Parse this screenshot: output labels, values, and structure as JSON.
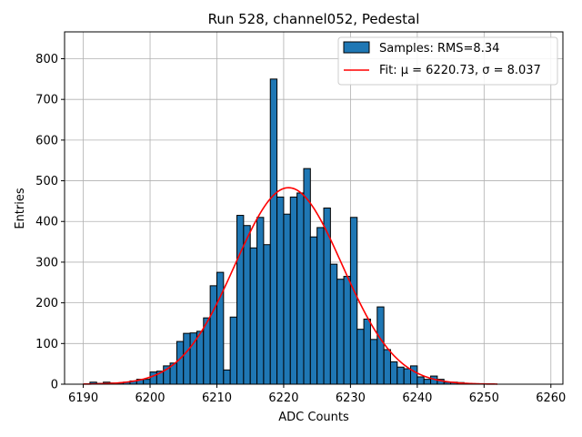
{
  "chart_data": {
    "type": "bar",
    "title": "Run 528, channel052, Pedestal",
    "xlabel": "ADC Counts",
    "ylabel": "Entries",
    "xlim": [
      6187.2,
      6261.8
    ],
    "ylim": [
      0,
      866
    ],
    "grid": true,
    "legend_position": "top-right",
    "x_ticks": [
      6190,
      6200,
      6210,
      6220,
      6230,
      6240,
      6250,
      6260
    ],
    "y_ticks": [
      0,
      100,
      200,
      300,
      400,
      500,
      600,
      700,
      800
    ],
    "histogram": {
      "name": "Samples: RMS=8.34",
      "color": "#1f77b4",
      "edge_color": "#000000",
      "bin_width": 1,
      "bin_starts": [
        6191,
        6192,
        6193,
        6194,
        6195,
        6196,
        6197,
        6198,
        6199,
        6200,
        6201,
        6202,
        6203,
        6204,
        6205,
        6206,
        6207,
        6208,
        6209,
        6210,
        6211,
        6212,
        6213,
        6214,
        6215,
        6216,
        6217,
        6218,
        6219,
        6220,
        6221,
        6222,
        6223,
        6224,
        6225,
        6226,
        6227,
        6228,
        6229,
        6230,
        6231,
        6232,
        6233,
        6234,
        6235,
        6236,
        6237,
        6238,
        6239,
        6240,
        6241,
        6242,
        6243,
        6244,
        6245,
        6246,
        6247
      ],
      "counts": [
        5,
        2,
        5,
        3,
        3,
        5,
        8,
        12,
        12,
        30,
        32,
        45,
        52,
        105,
        125,
        126,
        130,
        163,
        242,
        275,
        35,
        165,
        415,
        390,
        335,
        410,
        343,
        750,
        460,
        418,
        460,
        470,
        530,
        362,
        385,
        433,
        295,
        258,
        265,
        410,
        135,
        160,
        110,
        190,
        85,
        55,
        42,
        38,
        45,
        18,
        12,
        20,
        12,
        5,
        5,
        4,
        2
      ]
    },
    "fit": {
      "name": "Fit: μ = 6220.73, σ = 8.037",
      "color": "#ff0000",
      "mu": 6220.73,
      "sigma": 8.037,
      "amplitude": 483,
      "x_range": [
        6190,
        6252
      ]
    },
    "legend": [
      {
        "label": "Samples: RMS=8.34",
        "kind": "patch"
      },
      {
        "label": "Fit: μ = 6220.73, σ = 8.037",
        "kind": "line"
      }
    ]
  }
}
